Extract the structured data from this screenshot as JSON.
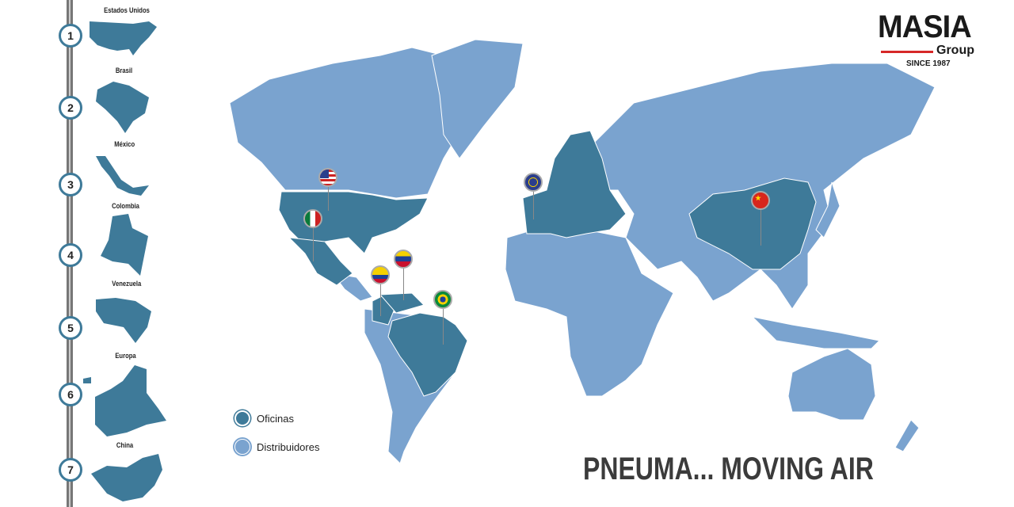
{
  "colors": {
    "oficinas": "#3e7a99",
    "distribuidores": "#7aa3cf"
  },
  "sidebar": {
    "items": [
      {
        "number": "1",
        "label": "Estados Unidos"
      },
      {
        "number": "2",
        "label": "Brasil"
      },
      {
        "number": "3",
        "label": "México"
      },
      {
        "number": "4",
        "label": "Colombia"
      },
      {
        "number": "5",
        "label": "Venezuela"
      },
      {
        "number": "6",
        "label": "Europa"
      },
      {
        "number": "7",
        "label": "China"
      }
    ]
  },
  "logo": {
    "name": "MASIA",
    "group": "Group",
    "since": "SINCE 1987"
  },
  "legend": {
    "items": [
      {
        "label": "Oficinas"
      },
      {
        "label": "Distribuidores"
      }
    ]
  },
  "slogan": "PNEUMA... MOVING AIR",
  "pins": [
    {
      "flag": "usa-flag-icon"
    },
    {
      "flag": "mexico-flag-icon"
    },
    {
      "flag": "colombia-flag-icon"
    },
    {
      "flag": "venezuela-flag-icon"
    },
    {
      "flag": "brazil-flag-icon"
    },
    {
      "flag": "eu-flag-icon"
    },
    {
      "flag": "china-flag-icon"
    }
  ]
}
